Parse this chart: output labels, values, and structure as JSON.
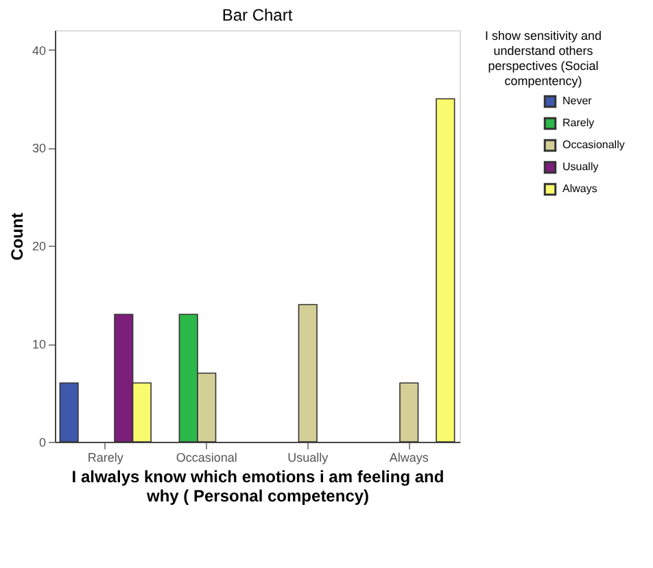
{
  "chart_data": {
    "type": "bar",
    "title": "Bar Chart",
    "xlabel": "I alwalys know which emotions i am feeling and why ( Personal competency)",
    "ylabel": "Count",
    "legend_title": "I show sensitivity and understand others perspectives (Social compentency)",
    "categories": [
      "Rarely",
      "Occasional",
      "Usually",
      "Always"
    ],
    "series": [
      {
        "name": "Never",
        "color": "#3e58ac",
        "values": [
          6,
          null,
          null,
          null
        ]
      },
      {
        "name": "Rarely",
        "color": "#2db84a",
        "values": [
          null,
          13,
          null,
          null
        ]
      },
      {
        "name": "Occasionally",
        "color": "#d4cf96",
        "values": [
          null,
          7,
          14,
          6
        ]
      },
      {
        "name": "Usually",
        "color": "#7b1f7a",
        "values": [
          13,
          null,
          null,
          null
        ]
      },
      {
        "name": "Always",
        "color": "#fafa6e",
        "values": [
          6,
          null,
          null,
          35
        ]
      }
    ],
    "ylim": [
      0,
      42
    ],
    "yticks": [
      0,
      10,
      20,
      30,
      40
    ],
    "grid": false,
    "legend": "top right"
  }
}
